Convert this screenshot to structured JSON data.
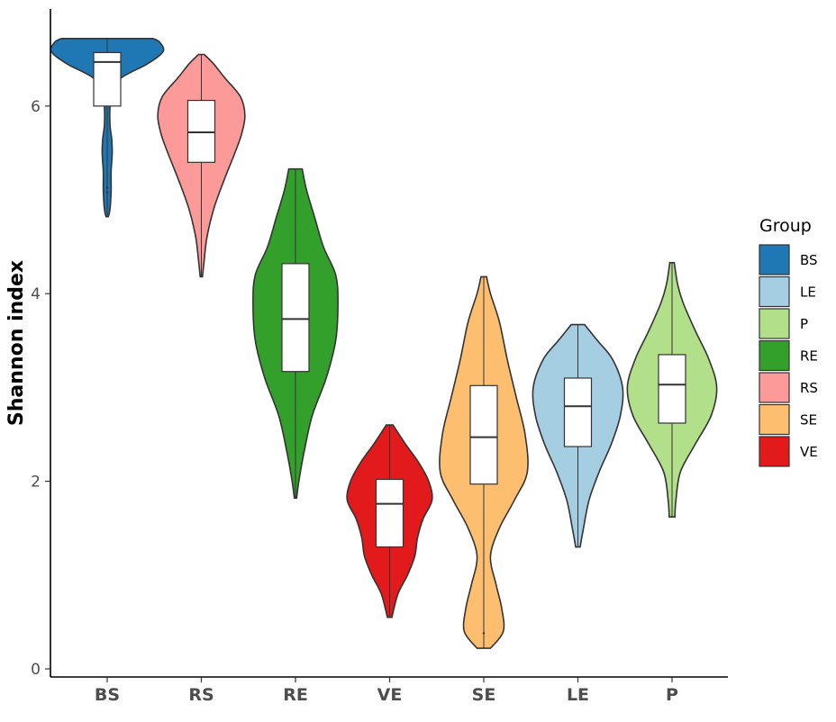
{
  "chart_data": {
    "type": "violin",
    "title": "",
    "xlabel": "",
    "ylabel": "Shannon index",
    "ylim": [
      0,
      7
    ],
    "yticks": [
      0,
      2,
      4,
      6
    ],
    "categories": [
      "BS",
      "RS",
      "RE",
      "VE",
      "SE",
      "LE",
      "P"
    ],
    "series": [
      {
        "name": "BS",
        "color": "#1f78b4",
        "min": 4.82,
        "q1": 6.0,
        "median": 6.47,
        "q3": 6.57,
        "max": 6.72,
        "outliers": [
          5.08,
          5.13
        ],
        "density": [
          [
            4.82,
            0.02
          ],
          [
            4.9,
            0.05
          ],
          [
            5.1,
            0.07
          ],
          [
            5.3,
            0.07
          ],
          [
            5.5,
            0.09
          ],
          [
            5.65,
            0.08
          ],
          [
            5.8,
            0.05
          ],
          [
            6.0,
            0.05
          ],
          [
            6.15,
            0.08
          ],
          [
            6.3,
            0.25
          ],
          [
            6.45,
            0.72
          ],
          [
            6.58,
            1.0
          ],
          [
            6.68,
            0.94
          ],
          [
            6.72,
            0.82
          ]
        ]
      },
      {
        "name": "RS",
        "color": "#fb9a99",
        "min": 4.18,
        "q1": 5.4,
        "median": 5.72,
        "q3": 6.06,
        "max": 6.55,
        "outliers": [],
        "density": [
          [
            4.18,
            0.02
          ],
          [
            4.35,
            0.05
          ],
          [
            4.6,
            0.1
          ],
          [
            4.9,
            0.22
          ],
          [
            5.2,
            0.4
          ],
          [
            5.5,
            0.6
          ],
          [
            5.7,
            0.72
          ],
          [
            5.9,
            0.78
          ],
          [
            6.1,
            0.7
          ],
          [
            6.3,
            0.42
          ],
          [
            6.45,
            0.22
          ],
          [
            6.55,
            0.05
          ]
        ]
      },
      {
        "name": "RE",
        "color": "#33a02c",
        "min": 1.82,
        "q1": 3.17,
        "median": 3.73,
        "q3": 4.32,
        "max": 5.33,
        "outliers": [],
        "density": [
          [
            1.82,
            0.02
          ],
          [
            2.0,
            0.06
          ],
          [
            2.3,
            0.15
          ],
          [
            2.7,
            0.3
          ],
          [
            3.1,
            0.55
          ],
          [
            3.5,
            0.72
          ],
          [
            3.9,
            0.76
          ],
          [
            4.2,
            0.72
          ],
          [
            4.5,
            0.5
          ],
          [
            4.8,
            0.35
          ],
          [
            5.1,
            0.2
          ],
          [
            5.33,
            0.12
          ]
        ]
      },
      {
        "name": "VE",
        "color": "#e31a1c",
        "min": 0.55,
        "q1": 1.3,
        "median": 1.76,
        "q3": 2.02,
        "max": 2.6,
        "outliers": [],
        "density": [
          [
            0.55,
            0.04
          ],
          [
            0.8,
            0.15
          ],
          [
            1.0,
            0.32
          ],
          [
            1.2,
            0.45
          ],
          [
            1.4,
            0.5
          ],
          [
            1.6,
            0.6
          ],
          [
            1.8,
            0.76
          ],
          [
            2.0,
            0.7
          ],
          [
            2.2,
            0.52
          ],
          [
            2.4,
            0.28
          ],
          [
            2.6,
            0.06
          ]
        ]
      },
      {
        "name": "SE",
        "color": "#fdbf6f",
        "min": 0.22,
        "q1": 1.97,
        "median": 2.47,
        "q3": 3.02,
        "max": 4.18,
        "outliers": [
          0.38
        ],
        "density": [
          [
            0.22,
            0.12
          ],
          [
            0.4,
            0.35
          ],
          [
            0.65,
            0.32
          ],
          [
            0.9,
            0.22
          ],
          [
            1.2,
            0.12
          ],
          [
            1.5,
            0.28
          ],
          [
            1.8,
            0.55
          ],
          [
            2.1,
            0.78
          ],
          [
            2.5,
            0.74
          ],
          [
            2.9,
            0.58
          ],
          [
            3.3,
            0.42
          ],
          [
            3.7,
            0.28
          ],
          [
            4.0,
            0.12
          ],
          [
            4.18,
            0.05
          ]
        ]
      },
      {
        "name": "LE",
        "color": "#a6cee3",
        "min": 1.3,
        "q1": 2.37,
        "median": 2.8,
        "q3": 3.1,
        "max": 3.67,
        "outliers": [],
        "density": [
          [
            1.3,
            0.04
          ],
          [
            1.5,
            0.1
          ],
          [
            1.8,
            0.2
          ],
          [
            2.1,
            0.38
          ],
          [
            2.4,
            0.6
          ],
          [
            2.7,
            0.76
          ],
          [
            3.0,
            0.8
          ],
          [
            3.3,
            0.62
          ],
          [
            3.5,
            0.35
          ],
          [
            3.67,
            0.12
          ]
        ]
      },
      {
        "name": "P",
        "color": "#b2df8a",
        "min": 1.62,
        "q1": 2.62,
        "median": 3.03,
        "q3": 3.35,
        "max": 4.33,
        "outliers": [],
        "density": [
          [
            1.62,
            0.05
          ],
          [
            1.8,
            0.07
          ],
          [
            2.1,
            0.15
          ],
          [
            2.4,
            0.42
          ],
          [
            2.7,
            0.7
          ],
          [
            3.0,
            0.8
          ],
          [
            3.3,
            0.66
          ],
          [
            3.6,
            0.42
          ],
          [
            3.9,
            0.2
          ],
          [
            4.1,
            0.1
          ],
          [
            4.33,
            0.04
          ]
        ]
      }
    ],
    "legend": {
      "title": "Group",
      "position": "right",
      "entries": [
        {
          "label": "BS",
          "color": "#1f78b4"
        },
        {
          "label": "LE",
          "color": "#a6cee3"
        },
        {
          "label": "P",
          "color": "#b2df8a"
        },
        {
          "label": "RE",
          "color": "#33a02c"
        },
        {
          "label": "RS",
          "color": "#fb9a99"
        },
        {
          "label": "SE",
          "color": "#fdbf6f"
        },
        {
          "label": "VE",
          "color": "#e31a1c"
        }
      ]
    },
    "grid": false
  }
}
